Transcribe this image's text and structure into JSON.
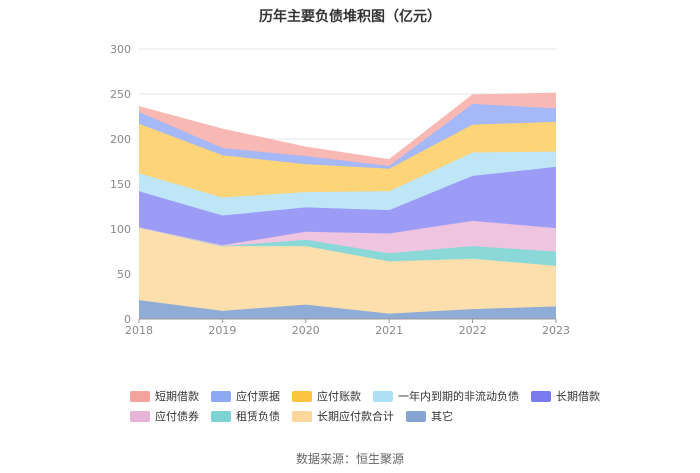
{
  "chart_data": {
    "type": "area",
    "stacked": true,
    "title": "历年主要负债堆积图（亿元）",
    "categories": [
      "2018",
      "2019",
      "2020",
      "2021",
      "2022",
      "2023"
    ],
    "y_ticks": [
      "0",
      "50",
      "100",
      "150",
      "200",
      "250",
      "300"
    ],
    "ylim": [
      0,
      300
    ],
    "series": [
      {
        "name": "其它",
        "color": "#8EACD6",
        "values": [
          21,
          9,
          16,
          6,
          11,
          14
        ]
      },
      {
        "name": "长期应付款合计",
        "color": "#FDDFAE",
        "values": [
          81,
          72,
          65,
          58,
          56,
          45
        ]
      },
      {
        "name": "租赁负债",
        "color": "#8BD8D8",
        "values": [
          0,
          0,
          7,
          9,
          14,
          16
        ]
      },
      {
        "name": "应付债券",
        "color": "#EEC4E0",
        "values": [
          0,
          1,
          9,
          22,
          28,
          26
        ]
      },
      {
        "name": "长期借款",
        "color": "#9C9CF6",
        "values": [
          40,
          33,
          27,
          26,
          50,
          68
        ]
      },
      {
        "name": "一年内到期的非流动负债",
        "color": "#BFE6F7",
        "values": [
          20,
          20,
          17,
          21,
          26,
          17
        ]
      },
      {
        "name": "应付账款",
        "color": "#FDD477",
        "values": [
          55,
          47,
          31,
          25,
          31,
          33
        ]
      },
      {
        "name": "应付票据",
        "color": "#A5B8F8",
        "values": [
          13,
          8,
          9,
          3,
          23,
          15
        ]
      },
      {
        "name": "短期借款",
        "color": "#F8B8B4",
        "values": [
          6,
          21,
          10,
          7,
          10,
          17
        ]
      }
    ],
    "legend_rows": [
      [
        "短期借款",
        "应付票据",
        "应付账款",
        "一年内到期的非流动负债",
        "长期借款"
      ],
      [
        "应付债券",
        "租赁负债",
        "长期应付款合计",
        "其它"
      ]
    ],
    "legend_colors": {
      "短期借款": "#F4A29C",
      "应付票据": "#8FA8F6",
      "应付账款": "#FCC43F",
      "一年内到期的非流动负债": "#ADE0F6",
      "长期借款": "#7B7BEE",
      "应付债券": "#E7B3D6",
      "租赁负债": "#7DD3D3",
      "长期应付款合计": "#FCD69A",
      "其它": "#86A4D2"
    },
    "source": "数据来源：恒生聚源"
  }
}
